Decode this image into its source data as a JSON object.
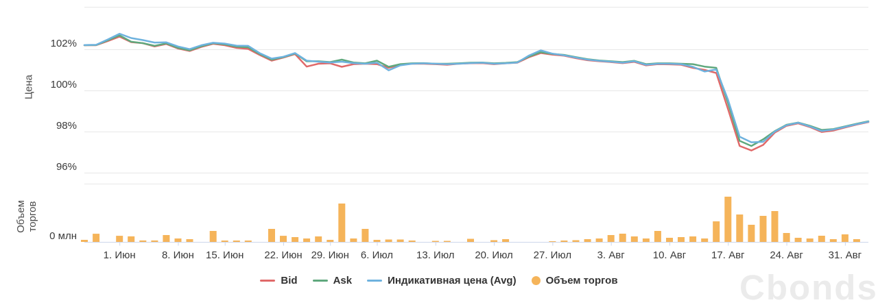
{
  "watermark": "Cbonds",
  "legend": {
    "items": [
      {
        "label": "Bid",
        "color": "#e06969",
        "marker": "line"
      },
      {
        "label": "Ask",
        "color": "#5fa87d",
        "marker": "line"
      },
      {
        "label": "Индикативная цена (Avg)",
        "color": "#6eb2de",
        "marker": "line"
      },
      {
        "label": "Объем торгов",
        "color": "#f5b45a",
        "marker": "circle"
      }
    ]
  },
  "chart_data": {
    "type": "line+bar",
    "n_points": 68,
    "y_axis": {
      "title": "Цена",
      "tick_labels": [
        "102%",
        "100%",
        "98%",
        "96%"
      ],
      "tick_values": [
        102,
        100,
        98,
        96
      ],
      "unit": "%"
    },
    "volume_axis": {
      "title": "Объем торгов",
      "zero_label": "0 млн",
      "values_unit": "relative_0_100_of_pane_height"
    },
    "x_axis": {
      "tick_labels": [
        "1. Июн",
        "8. Июн",
        "15. Июн",
        "22. Июн",
        "29. Июн",
        "6. Июл",
        "13. Июл",
        "20. Июл",
        "27. Июл",
        "3. Авг",
        "10. Авг",
        "17. Авг",
        "24. Авг",
        "31. Авг"
      ],
      "tick_slots": [
        3,
        8,
        12,
        17,
        21,
        25,
        30,
        35,
        40,
        45,
        50,
        55,
        60,
        65
      ]
    },
    "series": [
      {
        "name": "Bid",
        "color": "#e06969",
        "values": [
          102.2,
          102.2,
          102.4,
          102.62,
          102.35,
          102.3,
          102.14,
          102.26,
          102.04,
          101.92,
          102.12,
          102.27,
          102.2,
          102.07,
          102.02,
          101.72,
          101.45,
          101.6,
          101.77,
          101.16,
          101.3,
          101.32,
          101.15,
          101.28,
          101.3,
          101.28,
          101.1,
          101.25,
          101.3,
          101.3,
          101.28,
          101.25,
          101.3,
          101.32,
          101.33,
          101.28,
          101.32,
          101.35,
          101.62,
          101.82,
          101.74,
          101.69,
          101.57,
          101.47,
          101.42,
          101.38,
          101.33,
          101.39,
          101.22,
          101.28,
          101.27,
          101.25,
          101.1,
          101.0,
          100.85,
          99.1,
          97.3,
          97.08,
          97.35,
          97.95,
          98.28,
          98.4,
          98.22,
          97.98,
          98.05,
          98.2,
          98.34,
          98.46
        ]
      },
      {
        "name": "Ask",
        "color": "#5fa87d",
        "values": [
          102.2,
          102.21,
          102.44,
          102.68,
          102.37,
          102.3,
          102.17,
          102.29,
          102.07,
          101.95,
          102.15,
          102.3,
          102.24,
          102.13,
          102.1,
          101.77,
          101.5,
          101.62,
          101.8,
          101.42,
          101.42,
          101.38,
          101.5,
          101.36,
          101.32,
          101.45,
          101.15,
          101.28,
          101.32,
          101.33,
          101.3,
          101.3,
          101.32,
          101.35,
          101.36,
          101.32,
          101.34,
          101.38,
          101.65,
          101.86,
          101.78,
          101.73,
          101.62,
          101.52,
          101.46,
          101.42,
          101.38,
          101.44,
          101.28,
          101.32,
          101.32,
          101.3,
          101.28,
          101.16,
          101.1,
          99.4,
          97.55,
          97.3,
          97.62,
          98.02,
          98.33,
          98.44,
          98.28,
          98.08,
          98.12,
          98.25,
          98.38,
          98.5
        ]
      },
      {
        "name": "Индикативная цена (Avg)",
        "color": "#6eb2de",
        "values": [
          102.21,
          102.22,
          102.48,
          102.76,
          102.55,
          102.45,
          102.33,
          102.34,
          102.14,
          102.01,
          102.2,
          102.32,
          102.28,
          102.18,
          102.17,
          101.81,
          101.55,
          101.64,
          101.82,
          101.45,
          101.4,
          101.36,
          101.4,
          101.33,
          101.3,
          101.35,
          100.98,
          101.22,
          101.3,
          101.32,
          101.3,
          101.28,
          101.3,
          101.33,
          101.35,
          101.3,
          101.32,
          101.36,
          101.7,
          101.95,
          101.79,
          101.71,
          101.6,
          101.5,
          101.44,
          101.4,
          101.35,
          101.42,
          101.25,
          101.3,
          101.3,
          101.28,
          101.15,
          100.92,
          101.02,
          99.55,
          97.75,
          97.48,
          97.5,
          98.0,
          98.31,
          98.43,
          98.25,
          98.03,
          98.1,
          98.23,
          98.36,
          98.48
        ]
      }
    ],
    "volume_series": {
      "name": "Объем торгов",
      "color": "#f5b45a",
      "values_relative": [
        3.5,
        14,
        0,
        10.5,
        9.5,
        2.5,
        2.5,
        11.8,
        5.9,
        4.7,
        0,
        18.8,
        2.4,
        2.4,
        2.4,
        0,
        22.4,
        10.5,
        8.2,
        5.9,
        9.4,
        3.5,
        65.9,
        5.9,
        22.4,
        3.5,
        4.1,
        4.1,
        2.4,
        0,
        1.8,
        1.8,
        0,
        5.3,
        0,
        2.9,
        4.7,
        0,
        0,
        0,
        1.2,
        2.4,
        2.9,
        4.7,
        5.9,
        11.8,
        14.1,
        9.4,
        5.9,
        18.8,
        7.1,
        8.2,
        9.4,
        5.9,
        35.3,
        77.6,
        47.1,
        29.4,
        44.7,
        52.9,
        15.3,
        7.1,
        5.9,
        10.6,
        4.7,
        12.9,
        4.7,
        0
      ]
    },
    "layout": {
      "grid": true,
      "legend_position": "bottom-center"
    }
  }
}
